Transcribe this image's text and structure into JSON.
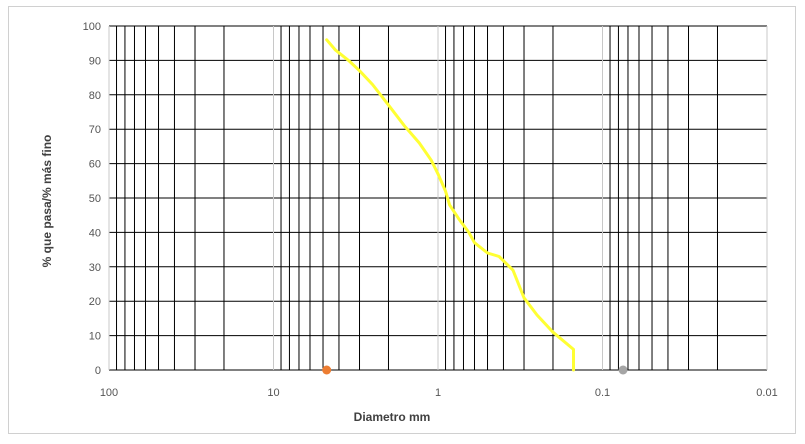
{
  "chart_data": {
    "type": "line",
    "title": "",
    "xlabel": "Diametro mm",
    "ylabel": "% que pasa/% más fino",
    "x_scale": "log",
    "x_reversed": true,
    "xlim": [
      100,
      0.01
    ],
    "ylim": [
      0,
      100
    ],
    "x_ticks": [
      "100",
      "10",
      "1",
      "0.1",
      "0.01"
    ],
    "y_ticks": [
      "0",
      "10",
      "20",
      "30",
      "40",
      "50",
      "60",
      "70",
      "80",
      "90",
      "100"
    ],
    "grid": true,
    "legend": "none",
    "series": [
      {
        "color": "#ffff33",
        "x": [
          4.75,
          4.2,
          3.5,
          3.0,
          2.5,
          2.0,
          1.6,
          1.3,
          1.1,
          1.0,
          0.9,
          0.85,
          0.75,
          0.65,
          0.6,
          0.5,
          0.425,
          0.35,
          0.3,
          0.25,
          0.2,
          0.15,
          0.15
        ],
        "y": [
          96,
          93,
          90,
          87,
          83,
          77,
          71,
          66,
          61,
          57,
          52,
          48,
          44,
          40,
          37,
          34,
          33,
          29,
          21,
          16,
          11,
          6,
          0
        ]
      }
    ],
    "markers": [
      {
        "x": 4.75,
        "y": 0,
        "color": "#ed7d31"
      },
      {
        "x": 0.075,
        "y": 0,
        "color": "#a5a5a5"
      }
    ]
  }
}
